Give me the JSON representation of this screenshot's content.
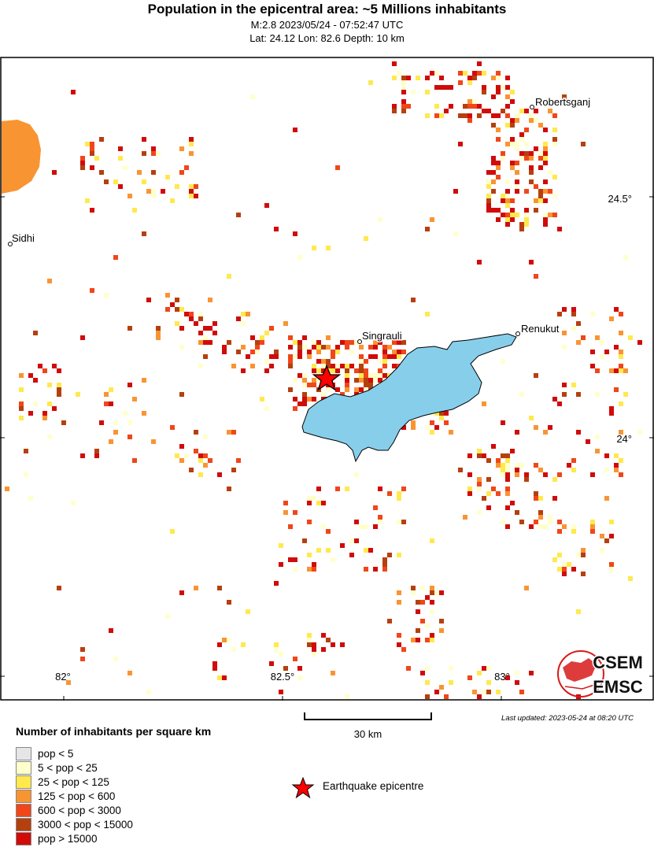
{
  "header": {
    "title": "Population in the epicentral area: ~5 Millions inhabitants",
    "event": "M:2.8 2023/05/24 - 07:52:47 UTC",
    "location": "Lat: 24.12 Lon: 82.6 Depth: 10 km"
  },
  "map": {
    "cities": [
      {
        "name": "Robertsganj"
      },
      {
        "name": "Sidhi"
      },
      {
        "name": "Singrauli"
      },
      {
        "name": "Renukut"
      }
    ],
    "lon_labels": [
      "82°",
      "82.5°",
      "83°"
    ],
    "lat_labels": [
      "24.5°",
      "24°"
    ],
    "logo": {
      "line1": "CSEM",
      "line2": "EMSC"
    },
    "colors": {
      "reservoir": "#87ceeb",
      "epicentre": "#ff0000",
      "frame": "#000000"
    }
  },
  "scale": {
    "label": "30 km"
  },
  "updated": "Last updated: 2023-05-24 at 08:20 UTC",
  "legend": {
    "title": "Number of inhabitants per square km",
    "items": [
      {
        "label": "pop < 5",
        "color": "#e6e6e6"
      },
      {
        "label": "5 < pop < 25",
        "color": "#ffffcc"
      },
      {
        "label": "25 < pop < 125",
        "color": "#ffe94d"
      },
      {
        "label": "125 < pop < 600",
        "color": "#f99432"
      },
      {
        "label": "600 < pop < 3000",
        "color": "#f0461a"
      },
      {
        "label": "3000 < pop < 15000",
        "color": "#b5400f"
      },
      {
        "label": "pop > 15000",
        "color": "#d10a0a"
      }
    ],
    "epicentre_label": "Earthquake epicentre"
  }
}
